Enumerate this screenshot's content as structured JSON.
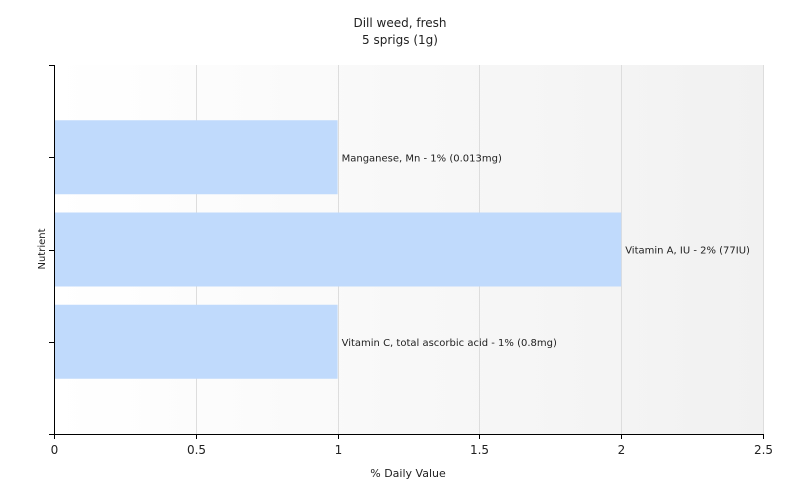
{
  "chart_data": {
    "type": "bar",
    "orientation": "horizontal",
    "title": "Dill weed, fresh",
    "subtitle": "5 sprigs (1g)",
    "xlabel": "% Daily Value",
    "ylabel": "Nutrient",
    "xlim": [
      0,
      2.5
    ],
    "xticks": [
      0,
      0.5,
      1,
      1.5,
      2,
      2.5
    ],
    "xtick_labels": [
      "0",
      "0.5",
      "1",
      "1.5",
      "2",
      "2.5"
    ],
    "grid": true,
    "categories": [
      "Manganese, Mn",
      "Vitamin A, IU",
      "Vitamin C, total ascorbic acid"
    ],
    "values": [
      1,
      2,
      1
    ],
    "data_labels": [
      "Manganese, Mn - 1% (0.013mg)",
      "Vitamin A, IU - 2% (77IU)",
      "Vitamin C, total ascorbic acid - 1% (0.8mg)"
    ],
    "colors": {
      "bar": "#c0dafc",
      "axis": "#000000",
      "grid": "#dddddd"
    }
  }
}
